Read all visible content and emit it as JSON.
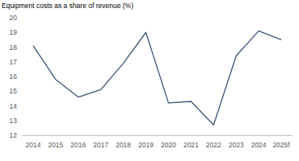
{
  "chart_data": {
    "type": "line",
    "title": "Equipment costs as a share of revenue (%)",
    "categories": [
      "2014",
      "2015",
      "2016",
      "2017",
      "2018",
      "2019",
      "2020",
      "2021",
      "2022",
      "2023",
      "2024",
      "2025f"
    ],
    "values": [
      18.1,
      15.8,
      14.6,
      15.1,
      16.9,
      19.0,
      14.2,
      14.3,
      12.7,
      17.4,
      19.1,
      18.5
    ],
    "color": "#3a5578",
    "ylim": [
      12,
      20
    ],
    "yticks": [
      12,
      13,
      14,
      15,
      16,
      17,
      18,
      19,
      20
    ],
    "grid": false
  }
}
